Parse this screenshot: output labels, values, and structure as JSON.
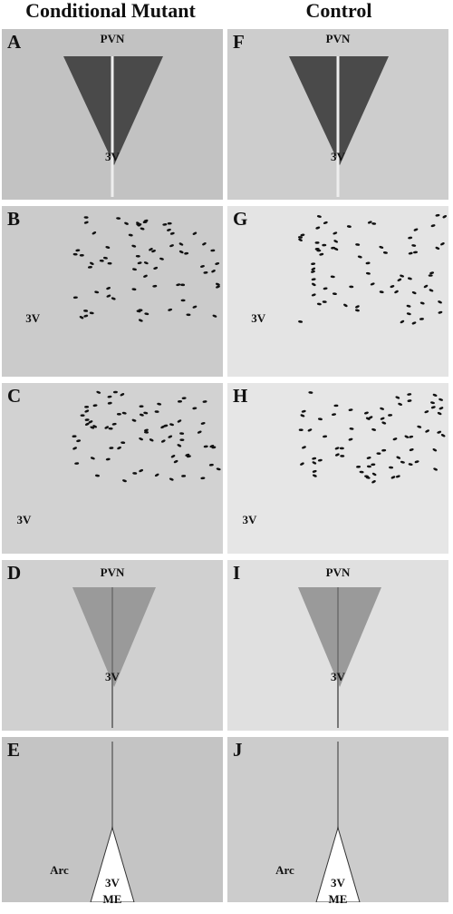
{
  "header": {
    "left": "Conditional Mutant",
    "right": "Control"
  },
  "panels": [
    {
      "letter": "A",
      "labels": [
        "PVN",
        "3V"
      ]
    },
    {
      "letter": "B",
      "labels": [
        "3V"
      ]
    },
    {
      "letter": "C",
      "labels": [
        "3V"
      ]
    },
    {
      "letter": "D",
      "labels": [
        "PVN",
        "3V"
      ]
    },
    {
      "letter": "E",
      "labels": [
        "Arc",
        "3V",
        "ME"
      ]
    },
    {
      "letter": "F",
      "labels": [
        "PVN",
        "3V"
      ]
    },
    {
      "letter": "G",
      "labels": [
        "3V"
      ]
    },
    {
      "letter": "H",
      "labels": [
        "3V"
      ]
    },
    {
      "letter": "I",
      "labels": [
        "PVN",
        "3V"
      ]
    },
    {
      "letter": "J",
      "labels": [
        "Arc",
        "3V",
        "ME"
      ]
    }
  ]
}
